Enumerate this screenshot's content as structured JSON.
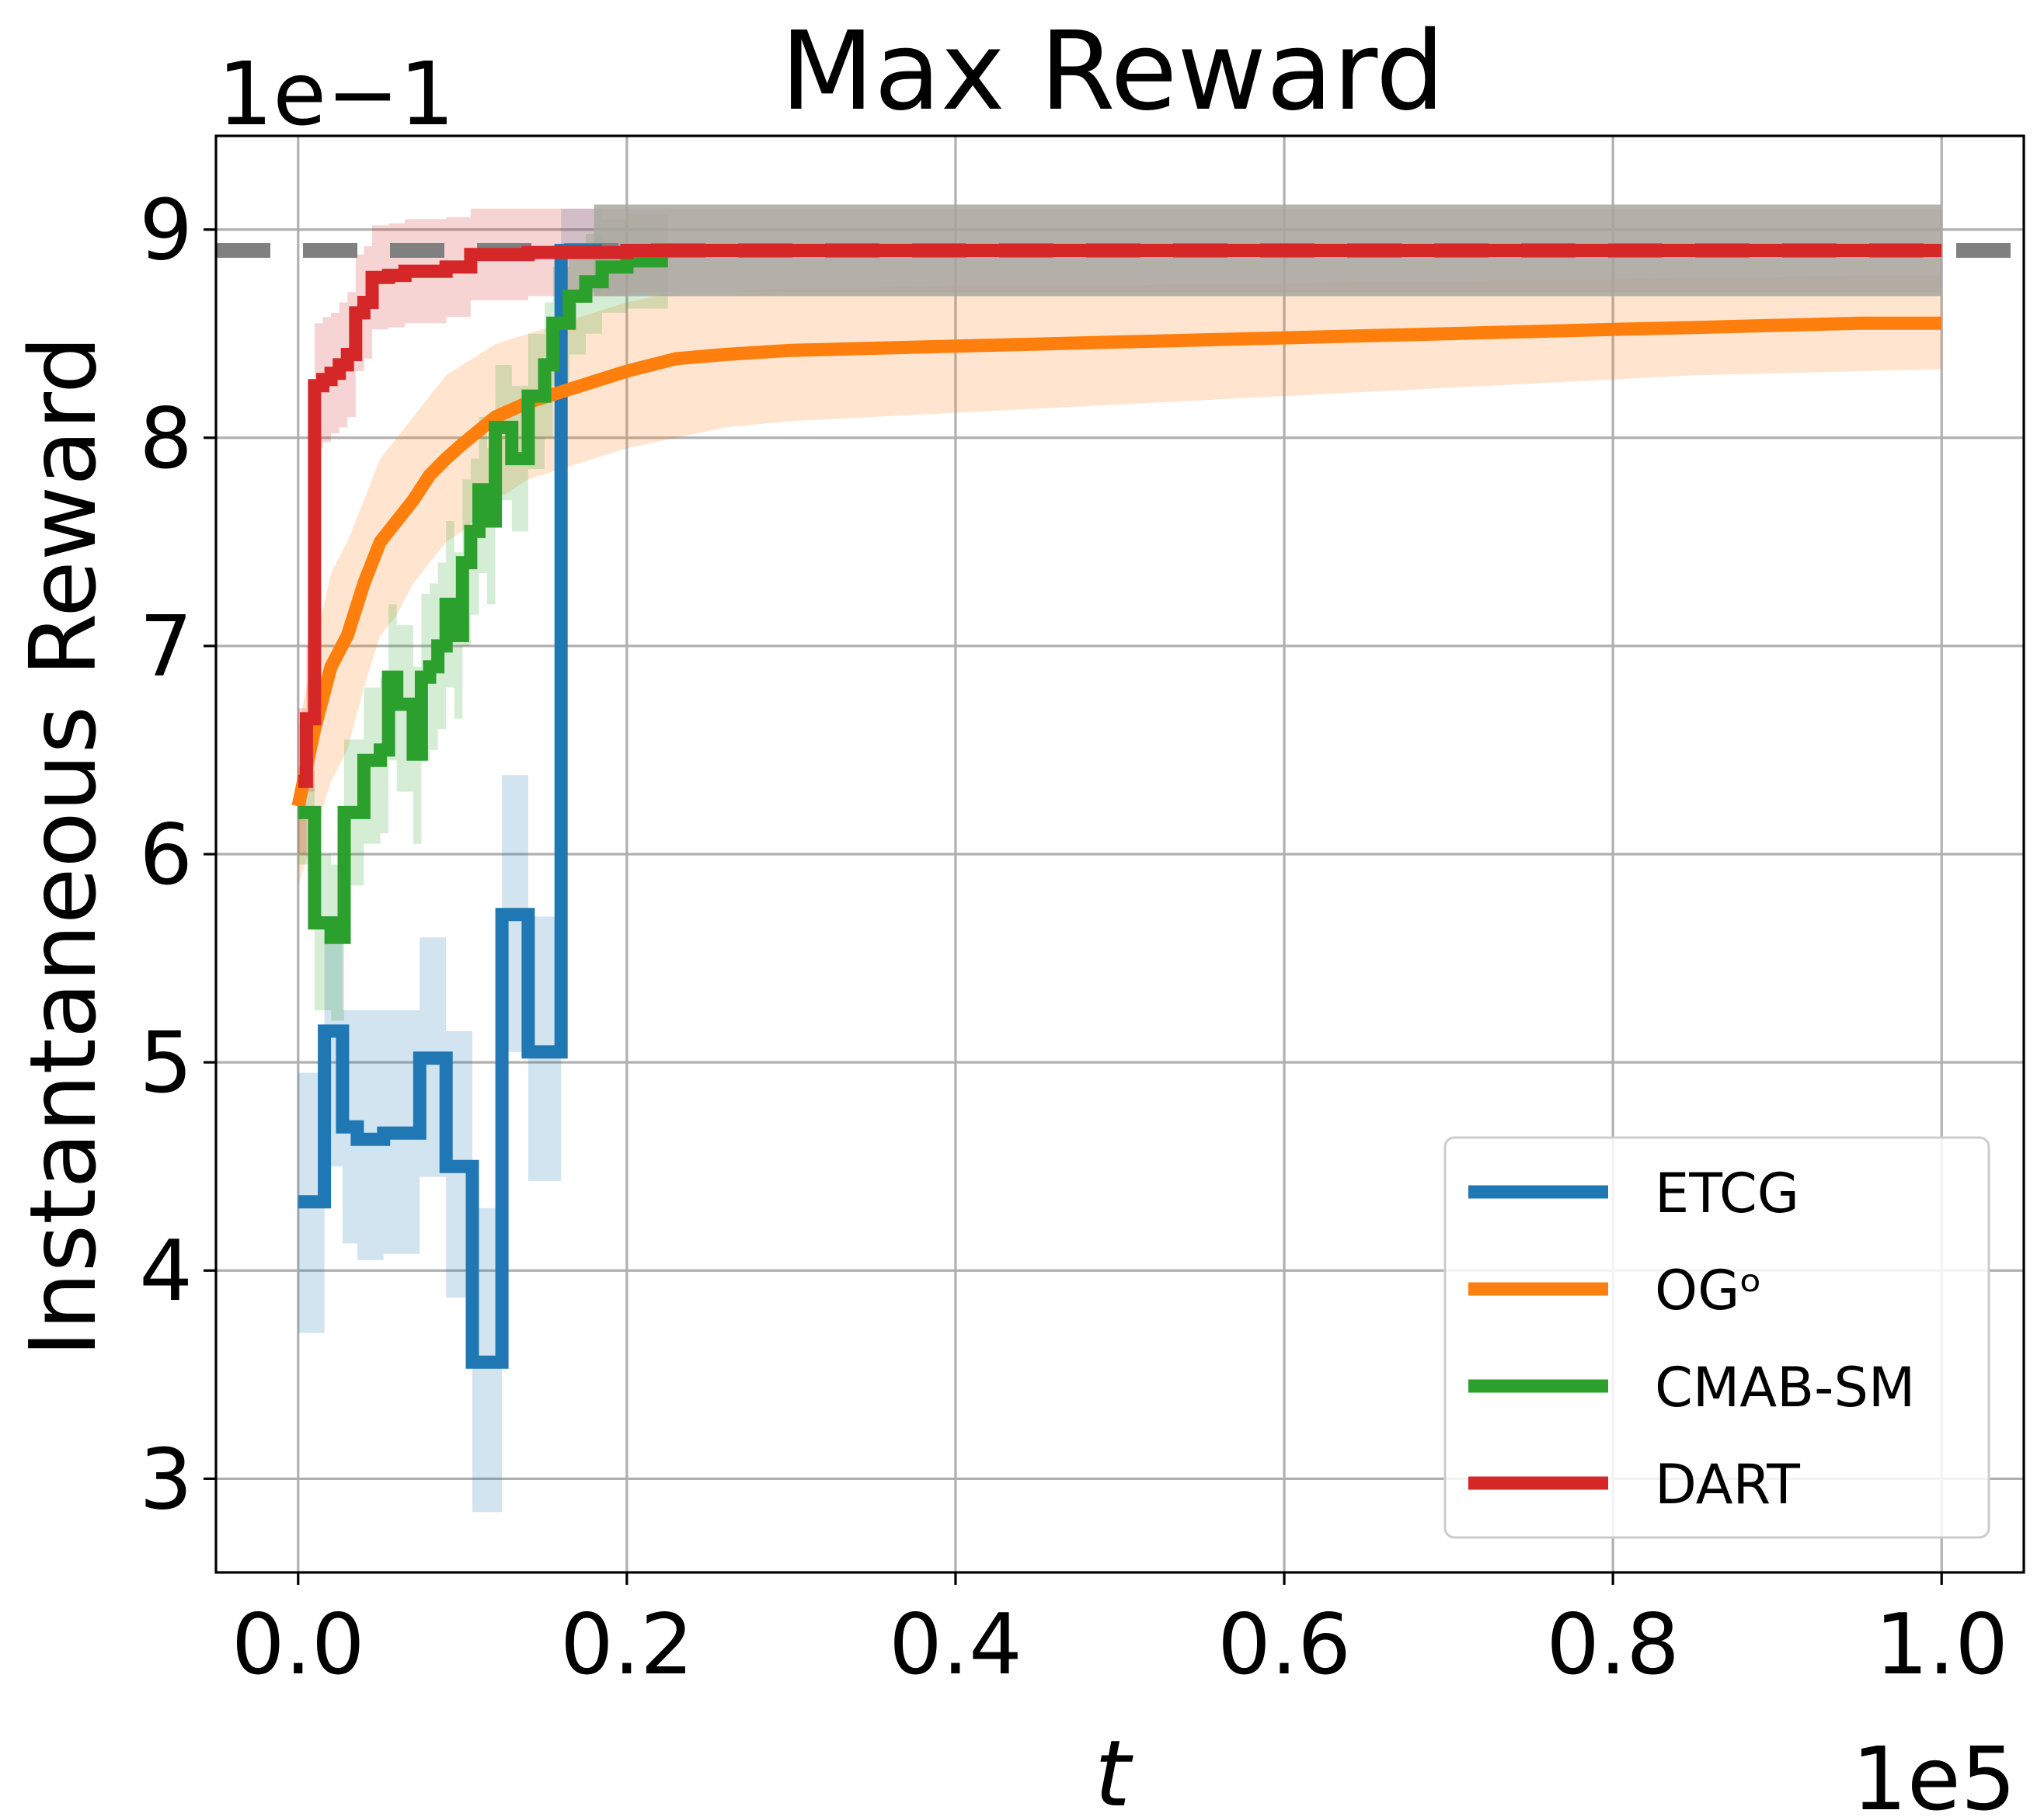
{
  "chart_data": {
    "type": "line",
    "title": "Max Reward",
    "xlabel": "t",
    "ylabel": "Instantaneous Reward",
    "x_offset_label": "1e5",
    "y_offset_label": "1e−1",
    "x_scale": 100000,
    "y_scale": 0.1,
    "xlim": [
      -0.05,
      1.05
    ],
    "ylim": [
      2.55,
      9.45
    ],
    "x_ticks": [
      0.0,
      0.2,
      0.4,
      0.6,
      0.8,
      1.0
    ],
    "x_tick_labels": [
      "0.0",
      "0.2",
      "0.4",
      "0.6",
      "0.8",
      "1.0"
    ],
    "y_ticks": [
      3,
      4,
      5,
      6,
      7,
      8,
      9
    ],
    "y_tick_labels": [
      "3",
      "4",
      "5",
      "6",
      "7",
      "8",
      "9"
    ],
    "grid": true,
    "legend_position": "lower-right",
    "reference_line": {
      "y": 8.9,
      "color": "#808080",
      "style": "dashed"
    },
    "series": [
      {
        "name": "ETCG",
        "color": "#1f77b4",
        "x": [
          0.0,
          0.016,
          0.016,
          0.027,
          0.027,
          0.036,
          0.036,
          0.052,
          0.052,
          0.074,
          0.074,
          0.09,
          0.09,
          0.106,
          0.106,
          0.124,
          0.124,
          0.14,
          0.14,
          0.16,
          0.16,
          0.178,
          0.178,
          0.185
        ],
        "y": [
          4.33,
          4.33,
          5.15,
          5.15,
          4.69,
          4.69,
          4.63,
          4.63,
          4.66,
          4.66,
          5.02,
          5.02,
          4.5,
          4.5,
          3.56,
          3.56,
          5.71,
          5.71,
          5.05,
          5.05,
          8.9,
          8.9,
          8.9,
          8.9
        ],
        "upper": [
          4.95,
          4.95,
          5.6,
          5.6,
          5.25,
          5.25,
          5.25,
          5.25,
          5.25,
          5.25,
          5.6,
          5.6,
          5.15,
          5.15,
          4.3,
          4.3,
          6.38,
          6.38,
          5.7,
          5.7,
          9.1,
          9.1,
          9.1,
          9.1
        ],
        "lower": [
          3.7,
          3.7,
          4.5,
          4.5,
          4.13,
          4.13,
          4.05,
          4.05,
          4.08,
          4.08,
          4.45,
          4.45,
          3.87,
          3.87,
          2.84,
          2.84,
          5.05,
          5.05,
          4.43,
          4.43,
          8.7,
          8.7,
          8.7,
          8.7
        ]
      },
      {
        "name": "OGᵒ",
        "color": "#ff7f0e",
        "x": [
          0.0,
          0.01,
          0.02,
          0.03,
          0.04,
          0.05,
          0.06,
          0.07,
          0.08,
          0.09,
          0.1,
          0.12,
          0.14,
          0.16,
          0.18,
          0.2,
          0.23,
          0.26,
          0.3,
          0.35,
          0.4,
          0.45,
          0.5,
          0.55,
          0.6,
          0.65,
          0.7,
          0.75,
          0.8,
          0.85,
          0.9,
          0.95,
          1.0
        ],
        "y": [
          6.23,
          6.6,
          6.9,
          7.05,
          7.3,
          7.5,
          7.6,
          7.7,
          7.82,
          7.9,
          7.97,
          8.1,
          8.17,
          8.22,
          8.27,
          8.32,
          8.38,
          8.4,
          8.42,
          8.43,
          8.44,
          8.45,
          8.46,
          8.47,
          8.48,
          8.49,
          8.5,
          8.51,
          8.52,
          8.53,
          8.54,
          8.55,
          8.55
        ],
        "upper": [
          6.6,
          7.0,
          7.35,
          7.5,
          7.7,
          7.9,
          8.0,
          8.1,
          8.2,
          8.3,
          8.35,
          8.45,
          8.5,
          8.55,
          8.6,
          8.65,
          8.7,
          8.7,
          8.72,
          8.72,
          8.73,
          8.73,
          8.73,
          8.74,
          8.74,
          8.75,
          8.75,
          8.76,
          8.76,
          8.77,
          8.77,
          8.78,
          8.78
        ],
        "lower": [
          5.85,
          6.1,
          6.35,
          6.5,
          6.8,
          7.05,
          7.15,
          7.3,
          7.4,
          7.5,
          7.55,
          7.7,
          7.8,
          7.85,
          7.9,
          7.95,
          8.0,
          8.05,
          8.08,
          8.1,
          8.12,
          8.14,
          8.16,
          8.18,
          8.2,
          8.22,
          8.24,
          8.26,
          8.28,
          8.3,
          8.31,
          8.32,
          8.33
        ]
      },
      {
        "name": "CMAB-SM",
        "color": "#2ca02c",
        "x": [
          0.0,
          0.01,
          0.01,
          0.02,
          0.02,
          0.028,
          0.028,
          0.04,
          0.04,
          0.05,
          0.05,
          0.055,
          0.055,
          0.06,
          0.06,
          0.07,
          0.07,
          0.075,
          0.075,
          0.08,
          0.08,
          0.085,
          0.085,
          0.09,
          0.09,
          0.095,
          0.095,
          0.1,
          0.1,
          0.105,
          0.105,
          0.11,
          0.11,
          0.115,
          0.115,
          0.12,
          0.12,
          0.13,
          0.13,
          0.14,
          0.14,
          0.15,
          0.15,
          0.155,
          0.155,
          0.165,
          0.165,
          0.175,
          0.175,
          0.185,
          0.185,
          0.2,
          0.2,
          0.225
        ],
        "y": [
          6.2,
          6.2,
          5.67,
          5.67,
          5.6,
          5.6,
          6.2,
          6.2,
          6.45,
          6.45,
          6.5,
          6.5,
          6.85,
          6.85,
          6.72,
          6.72,
          6.48,
          6.48,
          6.85,
          6.85,
          6.9,
          6.9,
          7.0,
          7.0,
          7.2,
          7.2,
          7.05,
          7.05,
          7.4,
          7.4,
          7.55,
          7.55,
          7.75,
          7.75,
          7.6,
          7.6,
          8.05,
          8.05,
          7.9,
          7.9,
          8.2,
          8.2,
          8.35,
          8.35,
          8.55,
          8.55,
          8.68,
          8.68,
          8.75,
          8.75,
          8.82,
          8.82,
          8.85,
          8.85
        ],
        "upper": [
          6.4,
          6.4,
          6.0,
          6.0,
          5.95,
          5.95,
          6.55,
          6.55,
          6.8,
          6.8,
          6.85,
          6.85,
          7.2,
          7.2,
          7.1,
          7.1,
          6.9,
          6.9,
          7.25,
          7.25,
          7.3,
          7.3,
          7.4,
          7.4,
          7.6,
          7.6,
          7.45,
          7.45,
          7.8,
          7.8,
          7.9,
          7.9,
          8.1,
          8.1,
          7.95,
          7.95,
          8.35,
          8.35,
          8.25,
          8.25,
          8.5,
          8.5,
          8.65,
          8.65,
          8.82,
          8.82,
          8.92,
          8.92,
          8.98,
          8.98,
          9.05,
          9.05,
          9.08,
          9.08
        ],
        "lower": [
          5.95,
          5.95,
          5.25,
          5.25,
          5.2,
          5.2,
          5.85,
          5.85,
          6.05,
          6.05,
          6.1,
          6.1,
          6.45,
          6.45,
          6.3,
          6.3,
          6.05,
          6.05,
          6.45,
          6.45,
          6.5,
          6.5,
          6.6,
          6.6,
          6.8,
          6.8,
          6.65,
          6.65,
          7.0,
          7.0,
          7.15,
          7.15,
          7.35,
          7.35,
          7.2,
          7.2,
          7.7,
          7.7,
          7.55,
          7.55,
          7.85,
          7.85,
          8.0,
          8.0,
          8.25,
          8.25,
          8.4,
          8.4,
          8.5,
          8.5,
          8.6,
          8.6,
          8.62,
          8.62
        ]
      },
      {
        "name": "DART",
        "color": "#d62728",
        "x": [
          0.0,
          0.005,
          0.005,
          0.01,
          0.01,
          0.015,
          0.015,
          0.02,
          0.02,
          0.025,
          0.025,
          0.03,
          0.03,
          0.035,
          0.035,
          0.04,
          0.04,
          0.045,
          0.045,
          0.055,
          0.055,
          0.065,
          0.065,
          0.09,
          0.09,
          0.105,
          0.105,
          0.14,
          0.14,
          0.2,
          0.2,
          1.0
        ],
        "y": [
          6.35,
          6.35,
          6.65,
          6.65,
          8.25,
          8.25,
          8.28,
          8.28,
          8.31,
          8.31,
          8.35,
          8.35,
          8.4,
          8.4,
          8.6,
          8.6,
          8.65,
          8.65,
          8.77,
          8.77,
          8.78,
          8.78,
          8.8,
          8.8,
          8.82,
          8.82,
          8.88,
          8.88,
          8.89,
          8.89,
          8.9,
          8.9
        ],
        "upper": [
          6.7,
          6.7,
          7.0,
          7.0,
          8.55,
          8.55,
          8.58,
          8.58,
          8.6,
          8.6,
          8.65,
          8.65,
          8.7,
          8.7,
          8.88,
          8.88,
          8.92,
          8.92,
          9.02,
          9.02,
          9.03,
          9.03,
          9.05,
          9.05,
          9.06,
          9.06,
          9.1,
          9.1,
          9.1,
          9.1,
          9.1,
          9.1
        ],
        "lower": [
          6.0,
          6.0,
          6.3,
          6.3,
          7.95,
          7.95,
          7.98,
          7.98,
          8.02,
          8.02,
          8.05,
          8.05,
          8.1,
          8.1,
          8.32,
          8.32,
          8.38,
          8.38,
          8.52,
          8.52,
          8.53,
          8.53,
          8.55,
          8.55,
          8.58,
          8.58,
          8.66,
          8.66,
          8.68,
          8.68,
          8.7,
          8.7
        ]
      }
    ],
    "overlap_band": {
      "x": [
        0.18,
        1.0
      ],
      "upper": 9.12,
      "lower": 8.68,
      "color": "#a8a8a0"
    }
  }
}
